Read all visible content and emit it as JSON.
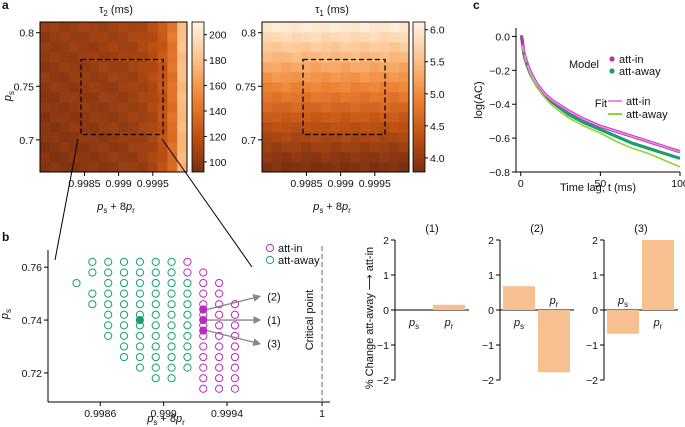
{
  "panel_labels": {
    "a": "a",
    "b": "b",
    "c": "c"
  },
  "chart_data": [
    {
      "id": "heatmap_tau2",
      "type": "heatmap",
      "title": "τ2 (ms)",
      "xlabel": "ps + 8pr",
      "ylabel": "ps",
      "xlim": [
        0.99785,
        1.0
      ],
      "ylim": [
        0.67,
        0.81
      ],
      "x_ticks": [
        0.9985,
        0.999,
        0.9995
      ],
      "x_tick_labels": [
        "0.9985",
        "0.999",
        "0.9995"
      ],
      "y_ticks": [
        0.7,
        0.75,
        0.8
      ],
      "y_tick_labels": [
        "0.7",
        "0.75",
        "0.8"
      ],
      "colorbar": {
        "ticks": [
          100,
          120,
          140,
          160,
          180,
          200
        ],
        "tick_labels": [
          "100",
          "120",
          "140",
          "160",
          "180",
          "200"
        ],
        "range": [
          92,
          210
        ],
        "colors": [
          "#7a2f12",
          "#c25314",
          "#ef8536",
          "#fcc28a",
          "#fff3e3"
        ]
      },
      "roi": {
        "x": [
          0.99845,
          0.99965
        ],
        "y": [
          0.705,
          0.775
        ]
      },
      "grid": {
        "nx": 15,
        "ny": 15,
        "min": 95,
        "max": 205
      }
    },
    {
      "id": "heatmap_tau1",
      "type": "heatmap",
      "title": "τ1 (ms)",
      "xlabel": "ps + 8pr",
      "ylabel": "",
      "xlim": [
        0.99785,
        1.0
      ],
      "ylim": [
        0.67,
        0.81
      ],
      "x_ticks": [
        0.9985,
        0.999,
        0.9995
      ],
      "x_tick_labels": [
        "0.9985",
        "0.999",
        "0.9995"
      ],
      "y_ticks": [
        0.7,
        0.75,
        0.8
      ],
      "y_tick_labels": [
        "0.7",
        "0.75",
        "0.8"
      ],
      "colorbar": {
        "ticks": [
          4.0,
          4.5,
          5.0,
          5.5,
          6.0
        ],
        "tick_labels": [
          "4.0",
          "4.5",
          "5.0",
          "5.5",
          "6.0"
        ],
        "range": [
          3.78,
          6.12
        ],
        "colors": [
          "#7a2f12",
          "#c25314",
          "#ef8536",
          "#fcc28a",
          "#fff3e3"
        ]
      },
      "roi": {
        "x": [
          0.99845,
          0.99965
        ],
        "y": [
          0.705,
          0.775
        ]
      },
      "grid": {
        "nx": 15,
        "ny": 15,
        "min": 3.8,
        "max": 6.1
      }
    },
    {
      "id": "autocorrelation",
      "type": "line",
      "xlabel": "Time lag, t (ms)",
      "ylabel": "log(AC)",
      "xlim": [
        -3,
        100
      ],
      "ylim": [
        -0.8,
        0.05
      ],
      "x_ticks": [
        0,
        50,
        100
      ],
      "x_tick_labels": [
        "0",
        "50",
        "100"
      ],
      "y_ticks": [
        0.0,
        -0.2,
        -0.4,
        -0.6,
        -0.8
      ],
      "y_tick_labels": [
        "0.0",
        "−0.2",
        "−0.4",
        "−0.6",
        "−0.8"
      ],
      "legend_model_title": "Model",
      "legend_fit_title": "Fit",
      "series": [
        {
          "name": "att-in",
          "kind": "model",
          "color": "#b52db8",
          "values": [
            [
              0.5,
              0.0
            ],
            [
              2,
              -0.1
            ],
            [
              4,
              -0.16
            ],
            [
              6,
              -0.21
            ],
            [
              10,
              -0.28
            ],
            [
              15,
              -0.34
            ],
            [
              20,
              -0.38
            ],
            [
              30,
              -0.44
            ],
            [
              40,
              -0.49
            ],
            [
              50,
              -0.53
            ],
            [
              60,
              -0.56
            ],
            [
              70,
              -0.59
            ],
            [
              80,
              -0.62
            ],
            [
              90,
              -0.65
            ],
            [
              100,
              -0.68
            ]
          ]
        },
        {
          "name": "att-away",
          "kind": "model",
          "color": "#1a9e6e",
          "values": [
            [
              0.5,
              0.0
            ],
            [
              2,
              -0.11
            ],
            [
              4,
              -0.17
            ],
            [
              6,
              -0.22
            ],
            [
              10,
              -0.29
            ],
            [
              15,
              -0.35
            ],
            [
              20,
              -0.39
            ],
            [
              30,
              -0.46
            ],
            [
              40,
              -0.51
            ],
            [
              50,
              -0.55
            ],
            [
              60,
              -0.59
            ],
            [
              70,
              -0.63
            ],
            [
              80,
              -0.66
            ],
            [
              90,
              -0.69
            ],
            [
              100,
              -0.72
            ]
          ]
        },
        {
          "name": "att-in",
          "kind": "fit",
          "color": "#f08ae8",
          "values": [
            [
              1,
              -0.05
            ],
            [
              3,
              -0.13
            ],
            [
              6,
              -0.21
            ],
            [
              10,
              -0.28
            ],
            [
              15,
              -0.34
            ],
            [
              20,
              -0.38
            ],
            [
              30,
              -0.44
            ],
            [
              40,
              -0.49
            ],
            [
              50,
              -0.53
            ],
            [
              60,
              -0.56
            ],
            [
              70,
              -0.59
            ],
            [
              80,
              -0.62
            ],
            [
              90,
              -0.65
            ],
            [
              100,
              -0.68
            ]
          ]
        },
        {
          "name": "att-away",
          "kind": "fit",
          "color": "#8ed62e",
          "values": [
            [
              1,
              -0.06
            ],
            [
              3,
              -0.14
            ],
            [
              6,
              -0.22
            ],
            [
              10,
              -0.3
            ],
            [
              15,
              -0.36
            ],
            [
              20,
              -0.41
            ],
            [
              30,
              -0.48
            ],
            [
              40,
              -0.53
            ],
            [
              50,
              -0.57
            ],
            [
              60,
              -0.62
            ],
            [
              70,
              -0.66
            ],
            [
              80,
              -0.69
            ],
            [
              90,
              -0.73
            ],
            [
              100,
              -0.77
            ]
          ]
        }
      ]
    },
    {
      "id": "parameter_grid",
      "type": "scatter",
      "xlabel": "ps + 8pr",
      "ylabel": "ps",
      "xlim": [
        0.99827,
        1.00005
      ],
      "ylim": [
        0.709,
        0.7665
      ],
      "x_ticks": [
        0.9986,
        0.999,
        0.9994,
        1.0
      ],
      "x_tick_labels": [
        "0.9986",
        "0.999",
        "0.9994",
        "1"
      ],
      "y_ticks": [
        0.72,
        0.74,
        0.76
      ],
      "y_tick_labels": [
        "0.72",
        "0.74",
        "0.76"
      ],
      "critical_point_x": 1.0,
      "critical_point_label": "Critical point",
      "legend": [
        {
          "name": "att-in",
          "color": "#b52db8"
        },
        {
          "name": "att-away",
          "color": "#1a9e6e"
        }
      ],
      "column_x": [
        0.99845,
        0.99855,
        0.99865,
        0.99875,
        0.99885,
        0.99895,
        0.99905,
        0.99915,
        0.99925,
        0.99935,
        0.99945
      ],
      "row_y": [
        0.714,
        0.718,
        0.722,
        0.726,
        0.73,
        0.734,
        0.738,
        0.742,
        0.746,
        0.75,
        0.754,
        0.758,
        0.762
      ],
      "att_away_columns": [
        [
          0.99845,
          [
            0.754
          ]
        ],
        [
          0.99855,
          [
            0.746,
            0.75,
            0.758,
            0.762
          ]
        ],
        [
          0.99865,
          [
            0.734,
            0.738,
            0.742,
            0.746,
            0.75,
            0.754,
            0.758,
            0.762
          ]
        ],
        [
          0.99875,
          [
            0.726,
            0.73,
            0.734,
            0.738,
            0.742,
            0.746,
            0.75,
            0.754,
            0.758,
            0.762
          ]
        ],
        [
          0.99885,
          [
            0.722,
            0.726,
            0.73,
            0.734,
            0.738,
            0.742,
            0.746,
            0.75,
            0.754,
            0.758,
            0.762
          ]
        ],
        [
          0.99895,
          [
            0.718,
            0.722,
            0.726,
            0.73,
            0.734,
            0.738,
            0.742,
            0.746,
            0.75,
            0.754,
            0.758,
            0.762
          ]
        ],
        [
          0.99905,
          [
            0.718,
            0.722,
            0.726,
            0.73,
            0.734,
            0.738,
            0.742,
            0.746,
            0.75,
            0.754,
            0.758,
            0.762
          ]
        ],
        [
          0.99915,
          [
            0.722,
            0.726,
            0.73,
            0.734,
            0.738,
            0.742,
            0.746,
            0.75,
            0.754
          ]
        ]
      ],
      "att_in_columns": [
        [
          0.99915,
          [
            0.758,
            0.762
          ]
        ],
        [
          0.99925,
          [
            0.714,
            0.718,
            0.722,
            0.726,
            0.73,
            0.734,
            0.738,
            0.742,
            0.746,
            0.75,
            0.754,
            0.758
          ]
        ],
        [
          0.99935,
          [
            0.714,
            0.718,
            0.722,
            0.726,
            0.73,
            0.734,
            0.738,
            0.742,
            0.746,
            0.75,
            0.754
          ]
        ],
        [
          0.99945,
          [
            0.714,
            0.718,
            0.722,
            0.726,
            0.73,
            0.734,
            0.738,
            0.742,
            0.746
          ]
        ]
      ],
      "filled_away": [
        [
          0.99885,
          0.74
        ]
      ],
      "filled_in": [
        [
          0.99925,
          0.744
        ],
        [
          0.99925,
          0.74
        ],
        [
          0.99925,
          0.736
        ]
      ],
      "arrows": [
        {
          "from": [
            0.99925,
            0.744
          ],
          "label": "(2)"
        },
        {
          "from": [
            0.99925,
            0.74
          ],
          "label": "(1)"
        },
        {
          "from": [
            0.99925,
            0.736
          ],
          "label": "(3)"
        }
      ]
    },
    {
      "id": "percent_change",
      "type": "bar",
      "ylabel": "% Change att-away → att-in",
      "ylim": [
        -2,
        2
      ],
      "y_ticks": [
        2,
        1,
        0,
        -1,
        -2
      ],
      "y_tick_labels": [
        "2",
        "1",
        "0",
        "−1",
        "−2"
      ],
      "categories": [
        "ps",
        "pr"
      ],
      "bar_color": "#f7c090",
      "panels": [
        {
          "title": "(1)",
          "values": [
            0.0,
            0.15
          ]
        },
        {
          "title": "(2)",
          "values": [
            0.68,
            -1.78
          ]
        },
        {
          "title": "(3)",
          "values": [
            -0.68,
            2.0
          ]
        }
      ]
    }
  ]
}
